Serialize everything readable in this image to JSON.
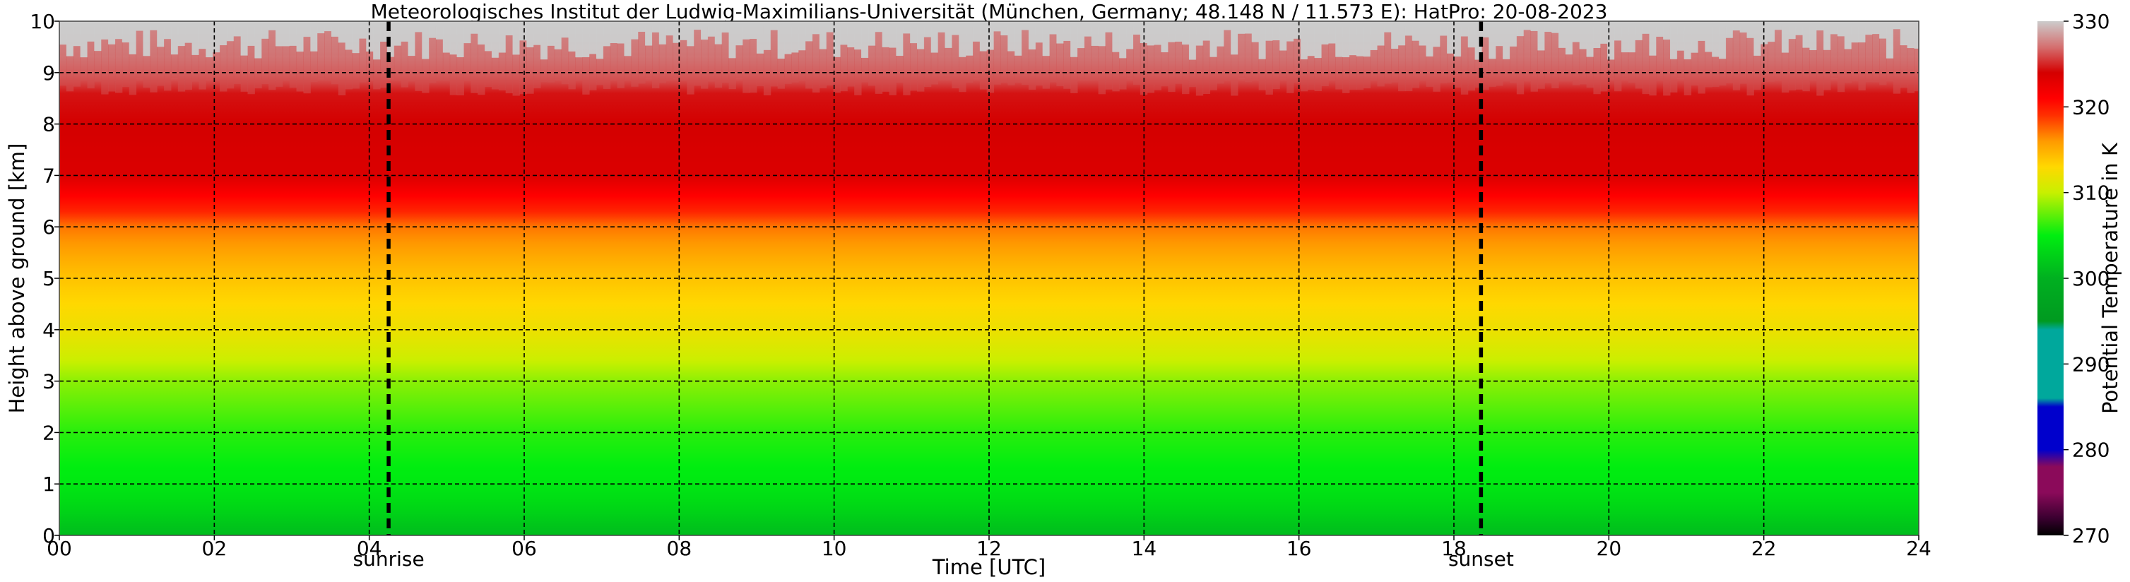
{
  "chart_data": {
    "type": "heatmap",
    "title": "Meteorologisches Institut der Ludwig-Maximilians-Universität (München, Germany; 48.148 N / 11.573 E):    HatPro: 20-08-2023",
    "xlabel": "Time [UTC]",
    "ylabel": "Height above ground [km]",
    "colorbar_label": "Potential Temperature in K",
    "xlim": [
      0,
      24
    ],
    "ylim": [
      0,
      10
    ],
    "x_ticks": [
      0,
      2,
      4,
      6,
      8,
      10,
      12,
      14,
      16,
      18,
      20,
      22,
      24
    ],
    "x_tick_labels": [
      "00",
      "02",
      "04",
      "06",
      "08",
      "10",
      "12",
      "14",
      "16",
      "18",
      "20",
      "22",
      "24"
    ],
    "y_ticks": [
      0,
      1,
      2,
      3,
      4,
      5,
      6,
      7,
      8,
      9,
      10
    ],
    "y_tick_labels": [
      "0",
      "1",
      "2",
      "3",
      "4",
      "5",
      "6",
      "7",
      "8",
      "9",
      "10"
    ],
    "grid": true,
    "color_range": [
      270,
      330
    ],
    "colorbar_ticks": [
      270,
      280,
      290,
      300,
      310,
      320,
      330
    ],
    "colorbar_tick_labels": [
      "270",
      "280",
      "290",
      "300",
      "310",
      "320",
      "330"
    ],
    "colorscale": [
      {
        "value": 270,
        "color": "#000000"
      },
      {
        "value": 272,
        "color": "#3a0030"
      },
      {
        "value": 275,
        "color": "#8b0a5a"
      },
      {
        "value": 278,
        "color": "#8b0a5a"
      },
      {
        "value": 280,
        "color": "#0000cc"
      },
      {
        "value": 285,
        "color": "#0000cc"
      },
      {
        "value": 286,
        "color": "#00a89c"
      },
      {
        "value": 294,
        "color": "#00a89c"
      },
      {
        "value": 295,
        "color": "#009a20"
      },
      {
        "value": 300,
        "color": "#00b020"
      },
      {
        "value": 305,
        "color": "#00ee10"
      },
      {
        "value": 310,
        "color": "#c8f000"
      },
      {
        "value": 313,
        "color": "#ffd800"
      },
      {
        "value": 316,
        "color": "#ff9a00"
      },
      {
        "value": 319,
        "color": "#ff3000"
      },
      {
        "value": 321,
        "color": "#ff0000"
      },
      {
        "value": 324,
        "color": "#d40000"
      },
      {
        "value": 327,
        "color": "#d47070"
      },
      {
        "value": 330,
        "color": "#cccccc"
      }
    ],
    "profile": {
      "heights_km": [
        0,
        0.5,
        1,
        2,
        3,
        3.5,
        4,
        4.5,
        5,
        5.5,
        6,
        6.3,
        6.6,
        7,
        8,
        8.6,
        9,
        9.3,
        10
      ],
      "theta_K": [
        301,
        303,
        304.5,
        306,
        308.5,
        310.5,
        312,
        313,
        314,
        315.5,
        317,
        319.5,
        321,
        323.5,
        324,
        324.5,
        327,
        328.5,
        330
      ]
    },
    "markers": [
      {
        "label": "sunrise",
        "time": 4.25
      },
      {
        "label": "sunset",
        "time": 18.35
      }
    ]
  }
}
